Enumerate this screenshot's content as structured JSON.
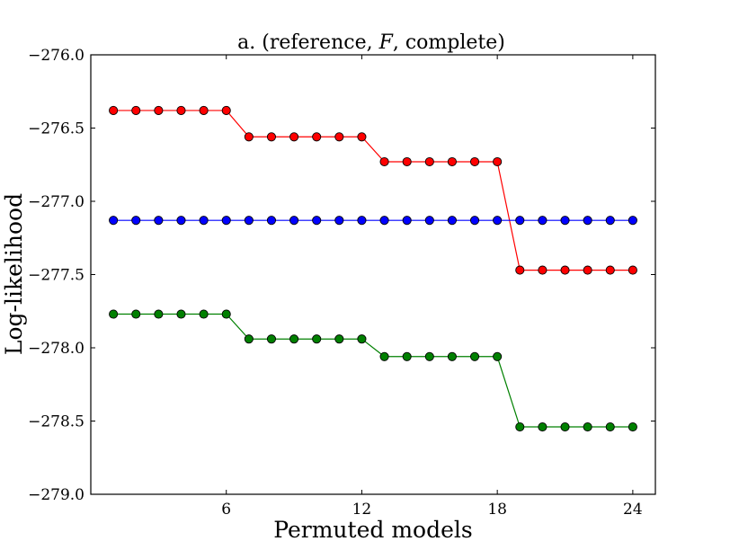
{
  "chart_data": {
    "type": "line",
    "title": "a.   (reference, F, complete)",
    "title_parts": [
      "a.   (reference, ",
      "F",
      ", complete)"
    ],
    "xlabel": "Permuted models",
    "ylabel": "Log-likelihood",
    "xlim": [
      0,
      25
    ],
    "ylim": [
      -279.0,
      -276.0
    ],
    "xticks": [
      6,
      12,
      18,
      24
    ],
    "xtick_labels": [
      "6",
      "12",
      "18",
      "24"
    ],
    "yticks": [
      -276.0,
      -276.5,
      -277.0,
      -277.5,
      -278.0,
      -278.5,
      -279.0
    ],
    "ytick_labels": [
      "−276.0",
      "−276.5",
      "−277.0",
      "−277.5",
      "−278.0",
      "−278.5",
      "−279.0"
    ],
    "grid": false,
    "x": [
      1,
      2,
      3,
      4,
      5,
      6,
      7,
      8,
      9,
      10,
      11,
      12,
      13,
      14,
      15,
      16,
      17,
      18,
      19,
      20,
      21,
      22,
      23,
      24
    ],
    "series": [
      {
        "color": "#ff0000",
        "values": [
          -276.38,
          -276.38,
          -276.38,
          -276.38,
          -276.38,
          -276.38,
          -276.56,
          -276.56,
          -276.56,
          -276.56,
          -276.56,
          -276.56,
          -276.73,
          -276.73,
          -276.73,
          -276.73,
          -276.73,
          -276.73,
          -277.47,
          -277.47,
          -277.47,
          -277.47,
          -277.47,
          -277.47
        ]
      },
      {
        "color": "#0000ff",
        "values": [
          -277.13,
          -277.13,
          -277.13,
          -277.13,
          -277.13,
          -277.13,
          -277.13,
          -277.13,
          -277.13,
          -277.13,
          -277.13,
          -277.13,
          -277.13,
          -277.13,
          -277.13,
          -277.13,
          -277.13,
          -277.13,
          -277.13,
          -277.13,
          -277.13,
          -277.13,
          -277.13,
          -277.13
        ]
      },
      {
        "color": "#008000",
        "values": [
          -277.77,
          -277.77,
          -277.77,
          -277.77,
          -277.77,
          -277.77,
          -277.94,
          -277.94,
          -277.94,
          -277.94,
          -277.94,
          -277.94,
          -278.06,
          -278.06,
          -278.06,
          -278.06,
          -278.06,
          -278.06,
          -278.54,
          -278.54,
          -278.54,
          -278.54,
          -278.54,
          -278.54
        ]
      }
    ]
  }
}
